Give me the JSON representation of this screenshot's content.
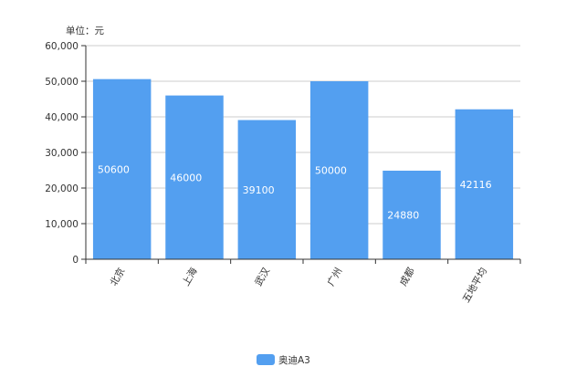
{
  "chart_data": {
    "type": "bar",
    "y_unit_label": "单位：元",
    "categories": [
      "北京",
      "上海",
      "武汉",
      "广州",
      "成都",
      "五地平均"
    ],
    "series": [
      {
        "name": "奥迪A3",
        "values": [
          50600,
          46000,
          39100,
          50000,
          24880,
          42116
        ]
      }
    ],
    "ylim": [
      0,
      60000
    ],
    "yticks": [
      "0",
      "10,000",
      "20,000",
      "30,000",
      "40,000",
      "50,000",
      "60,000"
    ],
    "data_labels": [
      "50600",
      "46000",
      "39100",
      "50000",
      "24880",
      "42116"
    ],
    "grid": true,
    "legend_position": "bottom-center",
    "colors": {
      "bar": "#539ff0",
      "grid": "#cccccc",
      "axis": "#333333"
    }
  }
}
